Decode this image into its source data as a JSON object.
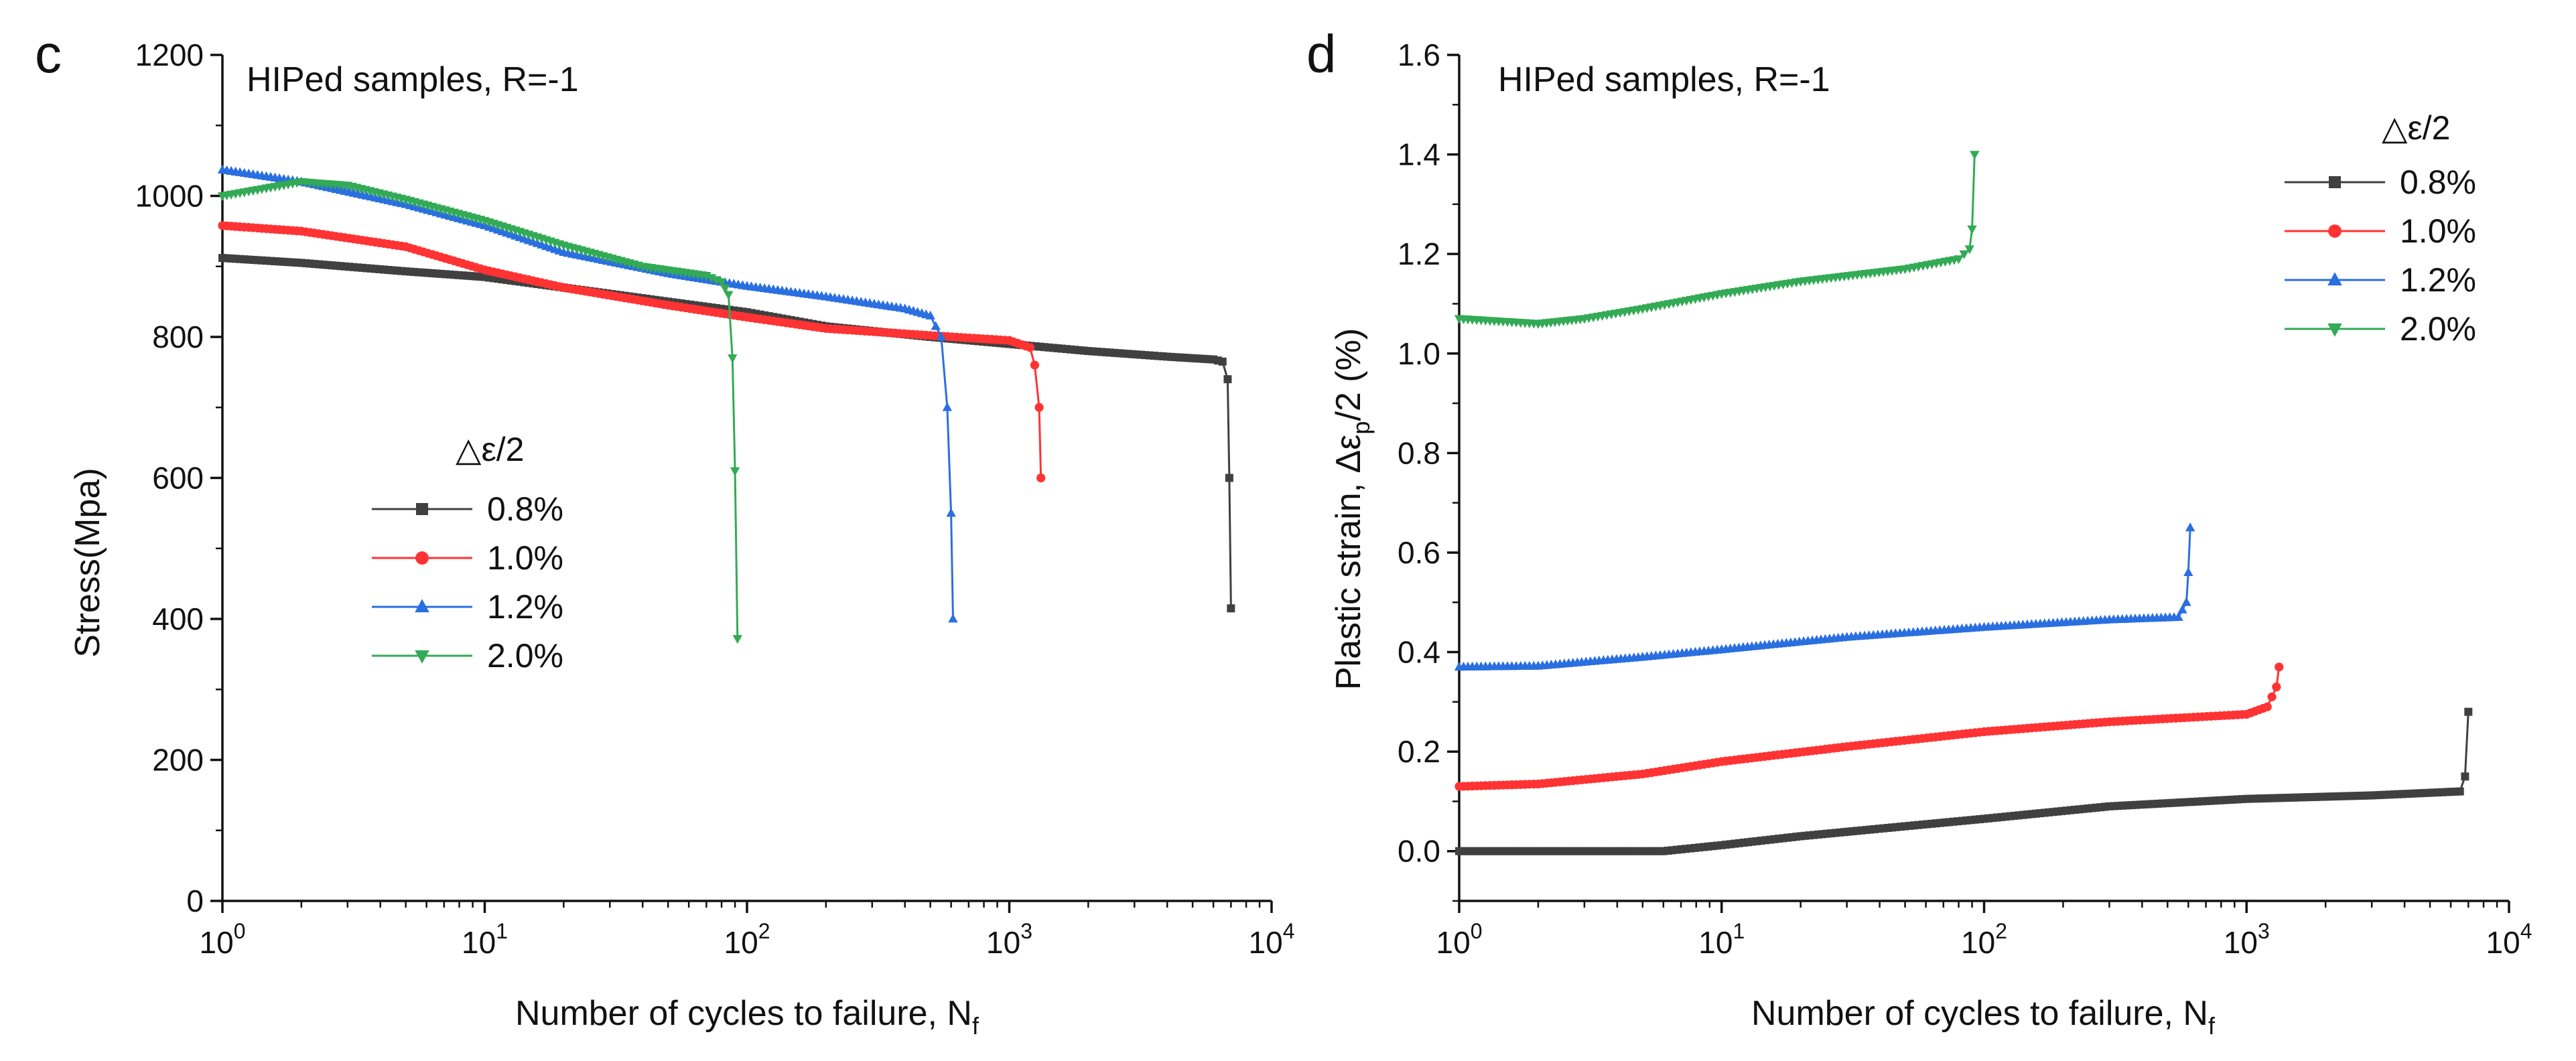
{
  "chart_data": [
    {
      "type": "line",
      "panel_label": "c",
      "annotation": "HIPed samples, R=-1",
      "xlabel_main": "Number of cycles to failure, N",
      "xlabel_sub": "f",
      "ylabel": "Stress(Mpa)",
      "xscale": "log",
      "xlim": [
        1,
        10000
      ],
      "ylim": [
        0,
        1200
      ],
      "x_ticks": [
        {
          "base": "10",
          "exp": "0",
          "value": 1
        },
        {
          "base": "10",
          "exp": "1",
          "value": 10
        },
        {
          "base": "10",
          "exp": "2",
          "value": 100
        },
        {
          "base": "10",
          "exp": "3",
          "value": 1000
        },
        {
          "base": "10",
          "exp": "4",
          "value": 10000
        }
      ],
      "y_ticks": [
        "0",
        "200",
        "400",
        "600",
        "800",
        "1000",
        "1200"
      ],
      "legend_title": "△ε/2",
      "legend_position": "center-left",
      "series": [
        {
          "name": "0.8%",
          "color": "#404040",
          "marker": "square",
          "points": [
            [
              1,
              912
            ],
            [
              2,
              905
            ],
            [
              5,
              893
            ],
            [
              10,
              885
            ],
            [
              20,
              870
            ],
            [
              50,
              850
            ],
            [
              100,
              835
            ],
            [
              200,
              815
            ],
            [
              500,
              800
            ],
            [
              1000,
              790
            ],
            [
              2000,
              780
            ],
            [
              4000,
              772
            ],
            [
              6000,
              768
            ],
            [
              6500,
              765
            ],
            [
              6800,
              740
            ],
            [
              6900,
              600
            ],
            [
              7000,
              415
            ]
          ]
        },
        {
          "name": "1.0%",
          "color": "#ff3333",
          "marker": "circle",
          "points": [
            [
              1,
              958
            ],
            [
              2,
              950
            ],
            [
              5,
              928
            ],
            [
              10,
              895
            ],
            [
              20,
              870
            ],
            [
              50,
              845
            ],
            [
              100,
              828
            ],
            [
              200,
              812
            ],
            [
              500,
              802
            ],
            [
              1000,
              795
            ],
            [
              1200,
              785
            ],
            [
              1250,
              760
            ],
            [
              1300,
              700
            ],
            [
              1320,
              600
            ]
          ]
        },
        {
          "name": "1.2%",
          "color": "#2a6fe0",
          "marker": "triangle-up",
          "points": [
            [
              1,
              1037
            ],
            [
              2,
              1020
            ],
            [
              5,
              988
            ],
            [
              10,
              958
            ],
            [
              20,
              920
            ],
            [
              50,
              890
            ],
            [
              100,
              872
            ],
            [
              200,
              857
            ],
            [
              400,
              840
            ],
            [
              500,
              830
            ],
            [
              550,
              800
            ],
            [
              580,
              700
            ],
            [
              600,
              550
            ],
            [
              610,
              400
            ]
          ]
        },
        {
          "name": "2.0%",
          "color": "#33aa55",
          "marker": "triangle-down",
          "points": [
            [
              1,
              1000
            ],
            [
              2,
              1020
            ],
            [
              3,
              1015
            ],
            [
              5,
              995
            ],
            [
              10,
              965
            ],
            [
              20,
              930
            ],
            [
              40,
              900
            ],
            [
              70,
              887
            ],
            [
              80,
              878
            ],
            [
              85,
              860
            ],
            [
              88,
              770
            ],
            [
              90,
              610
            ],
            [
              92,
              372
            ]
          ]
        }
      ]
    },
    {
      "type": "line",
      "panel_label": "d",
      "annotation": "HIPed samples, R=-1",
      "xlabel_main": "Number of cycles to failure, N",
      "xlabel_sub": "f",
      "ylabel_main": "Plastic strain, Δε",
      "ylabel_sub": "p",
      "ylabel_end": "/2 (%)",
      "xscale": "log",
      "xlim": [
        1,
        10000
      ],
      "ylim": [
        -0.1,
        1.6
      ],
      "x_ticks": [
        {
          "base": "10",
          "exp": "0",
          "value": 1
        },
        {
          "base": "10",
          "exp": "1",
          "value": 10
        },
        {
          "base": "10",
          "exp": "2",
          "value": 100
        },
        {
          "base": "10",
          "exp": "3",
          "value": 1000
        },
        {
          "base": "10",
          "exp": "4",
          "value": 10000
        }
      ],
      "y_ticks": [
        "0.0",
        "0.2",
        "0.4",
        "0.6",
        "0.8",
        "1.0",
        "1.2",
        "1.4",
        "1.6"
      ],
      "legend_title": "△ε/2",
      "legend_position": "top-right",
      "series": [
        {
          "name": "0.8%",
          "color": "#404040",
          "marker": "square",
          "points": [
            [
              1,
              0.0
            ],
            [
              3,
              0.0
            ],
            [
              6,
              0.0
            ],
            [
              10,
              0.012
            ],
            [
              20,
              0.03
            ],
            [
              50,
              0.05
            ],
            [
              100,
              0.065
            ],
            [
              300,
              0.09
            ],
            [
              1000,
              0.105
            ],
            [
              3000,
              0.112
            ],
            [
              6500,
              0.12
            ],
            [
              6800,
              0.15
            ],
            [
              7000,
              0.28
            ]
          ]
        },
        {
          "name": "1.0%",
          "color": "#ff3333",
          "marker": "circle",
          "points": [
            [
              1,
              0.13
            ],
            [
              2,
              0.135
            ],
            [
              5,
              0.155
            ],
            [
              10,
              0.18
            ],
            [
              30,
              0.21
            ],
            [
              100,
              0.24
            ],
            [
              300,
              0.26
            ],
            [
              1000,
              0.275
            ],
            [
              1200,
              0.29
            ],
            [
              1300,
              0.33
            ],
            [
              1330,
              0.37
            ]
          ]
        },
        {
          "name": "1.2%",
          "color": "#2a6fe0",
          "marker": "triangle-up",
          "points": [
            [
              1,
              0.37
            ],
            [
              2,
              0.372
            ],
            [
              5,
              0.39
            ],
            [
              10,
              0.405
            ],
            [
              30,
              0.43
            ],
            [
              100,
              0.45
            ],
            [
              300,
              0.465
            ],
            [
              550,
              0.47
            ],
            [
              590,
              0.5
            ],
            [
              600,
              0.56
            ],
            [
              610,
              0.65
            ]
          ]
        },
        {
          "name": "2.0%",
          "color": "#33aa55",
          "marker": "triangle-down",
          "points": [
            [
              1,
              1.07
            ],
            [
              2,
              1.06
            ],
            [
              3,
              1.07
            ],
            [
              5,
              1.09
            ],
            [
              10,
              1.12
            ],
            [
              20,
              1.145
            ],
            [
              50,
              1.17
            ],
            [
              80,
              1.19
            ],
            [
              88,
              1.21
            ],
            [
              90,
              1.25
            ],
            [
              92,
              1.4
            ]
          ]
        }
      ]
    }
  ]
}
